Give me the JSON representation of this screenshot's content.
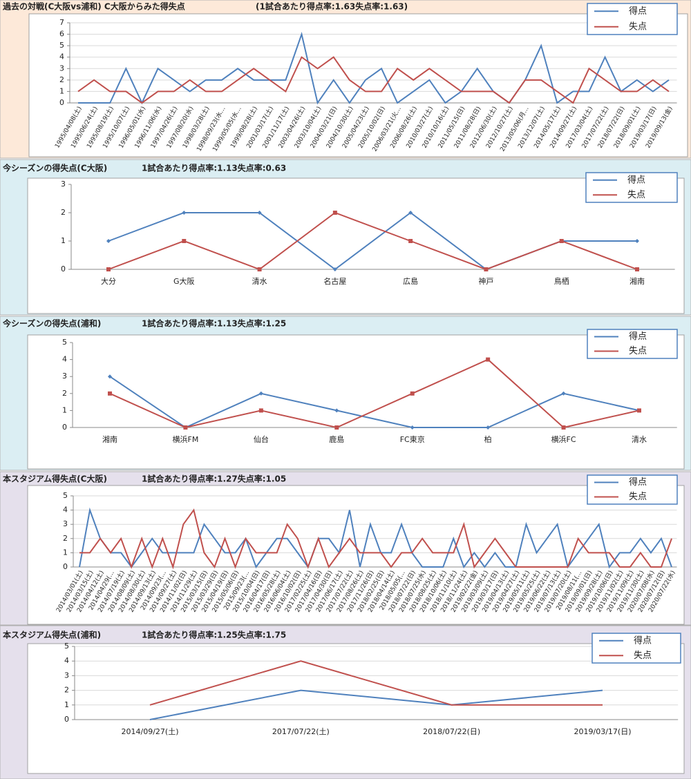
{
  "chart_data": [
    {
      "type": "line",
      "title": "過去の対戦(C大阪vs浦和)  C大阪からみた得失点",
      "subtitle": "(1試合あたり得点率:1.63失点率:1.63)",
      "categories": [
        "1995/04/08(土)",
        "1995/06/24(土)",
        "1995/08/19(土)",
        "1995/10/07(土)",
        "1996/05/01(水)",
        "1996/11/06(水)",
        "1997/04/26(土)",
        "1997/08/20(水)",
        "1998/03/28(土)",
        "1998/09/23(水…",
        "1999/05/05(水…",
        "1999/08/28(土)",
        "2001/03/17(土)",
        "2001/11/17(土)",
        "2003/04/26(土)",
        "2003/10/04(土)",
        "2004/03/21(日)",
        "2004/10/30(土)",
        "2005/04/23(土)",
        "2005/10/02(日)",
        "2006/03/21(火…",
        "2006/08/26(土)",
        "2010/03/27(土)",
        "2010/10/16(土)",
        "2011/05/15(日)",
        "2011/08/28(日)",
        "2012/06/30(土)",
        "2012/10/27(土)",
        "2013/05/06(月…",
        "2013/12/07(土)",
        "2014/05/17(土)",
        "2014/09/27(土)",
        "2017/03/04(土)",
        "2017/07/22(土)",
        "2018/07/22(日)",
        "2018/09/01(土)",
        "2019/03/17(日)",
        "2019/09/13(金)"
      ],
      "series": [
        {
          "name": "得点",
          "color": "#4f81bd",
          "values": [
            0,
            0,
            0,
            3,
            0,
            3,
            2,
            1,
            2,
            2,
            3,
            2,
            2,
            2,
            6,
            0,
            2,
            0,
            2,
            3,
            0,
            1,
            2,
            0,
            1,
            3,
            1,
            0,
            2,
            5,
            0,
            1,
            1,
            4,
            1,
            2,
            1,
            2
          ]
        },
        {
          "name": "失点",
          "color": "#c0504d",
          "values": [
            1,
            2,
            1,
            1,
            0,
            1,
            1,
            2,
            1,
            1,
            2,
            3,
            2,
            1,
            4,
            3,
            4,
            2,
            1,
            1,
            3,
            2,
            3,
            2,
            1,
            1,
            1,
            0,
            2,
            2,
            1,
            0,
            3,
            2,
            1,
            1,
            2,
            1
          ]
        }
      ],
      "ylim": [
        0,
        7
      ],
      "yticks": [
        0,
        1,
        2,
        3,
        4,
        5,
        6,
        7
      ],
      "grid": true,
      "markers": false,
      "legend": "top-right"
    },
    {
      "type": "line",
      "title": "今シーズンの得失点(C大阪)",
      "subtitle": "1試合あたり得点率:1.13失点率:0.63",
      "categories": [
        "大分",
        "G大阪",
        "清水",
        "名古屋",
        "広島",
        "神戸",
        "鳥栖",
        "湘南"
      ],
      "series": [
        {
          "name": "得点",
          "color": "#4f81bd",
          "values": [
            1,
            2,
            2,
            0,
            2,
            0,
            1,
            1
          ]
        },
        {
          "name": "失点",
          "color": "#c0504d",
          "values": [
            0,
            1,
            0,
            2,
            1,
            0,
            1,
            0
          ]
        }
      ],
      "ylim": [
        0,
        3
      ],
      "yticks": [
        0,
        1,
        2,
        3
      ],
      "grid": false,
      "markers": true,
      "legend": "top-right"
    },
    {
      "type": "line",
      "title": "今シーズンの得失点(浦和)",
      "subtitle": "1試合あたり得点率:1.13失点率:1.25",
      "categories": [
        "湘南",
        "横浜FM",
        "仙台",
        "鹿島",
        "FC東京",
        "柏",
        "横浜FC",
        "清水"
      ],
      "series": [
        {
          "name": "得点",
          "color": "#4f81bd",
          "values": [
            3,
            0,
            2,
            1,
            0,
            0,
            2,
            1
          ]
        },
        {
          "name": "失点",
          "color": "#c0504d",
          "values": [
            2,
            0,
            1,
            0,
            2,
            4,
            0,
            1
          ]
        }
      ],
      "ylim": [
        0,
        5
      ],
      "yticks": [
        0,
        1,
        2,
        3,
        4,
        5
      ],
      "grid": false,
      "markers": true,
      "legend": "top-right"
    },
    {
      "type": "line",
      "title": "本スタジアム得失点(C大阪)",
      "subtitle": "1試合あたり得点率:1.27失点率:1.05",
      "categories": [
        "2014/03/01(土)",
        "2014/03/15(土)",
        "2014/04/12(土)",
        "2014/04/29(…",
        "2014/07/19(土)",
        "2014/08/09(土)",
        "2014/08/30(土)",
        "2014/09/13(土)",
        "2014/09/23(…",
        "2014/09/27(土)",
        "2014/11/02(日)",
        "2014/11/29(土)",
        "2015/03/15(日)",
        "2015/03/29(日)",
        "2015/04/19(日)",
        "2015/05/06(日)",
        "2015/09/23(…",
        "2015/10/04(日)",
        "2016/04/17(日)",
        "2016/05/28(土)",
        "2016/06/04(土)",
        "2016/10/02(日)",
        "2017/02/25(土)",
        "2017/04/16(日)",
        "2017/04/30(日)",
        "2017/06/17(土)",
        "2017/07/22(土)",
        "2017/08/26(土)",
        "2017/11/26(日)",
        "2018/02/25(日)",
        "2018/04/14(土)",
        "2018/05/05(…",
        "2018/07/22(日)",
        "2018/07/25(水)",
        "2018/08/25(土)",
        "2018/10/06(土)",
        "2018/11/10(土)",
        "2018/11/24(土)",
        "2019/02/22(金)",
        "2019/03/09(土)",
        "2019/03/17(日)",
        "2019/04/13(土)",
        "2019/04/27(土)",
        "2019/05/11(土)",
        "2019/05/25(土)",
        "2019/06/22(土)",
        "2019/07/13(土)",
        "2019/07/20(土)",
        "2019/08/11(…",
        "2019/09/01(日)",
        "2019/09/28(土)",
        "2019/10/06(日)",
        "2019/11/02(土)",
        "2019/11/09(土)",
        "2019/11/30(土)",
        "2020/07/08(水)",
        "2020/07/12(日)",
        "2020/07/22(水)"
      ],
      "series": [
        {
          "name": "得点",
          "color": "#4f81bd",
          "values": [
            0,
            4,
            2,
            1,
            1,
            0,
            1,
            2,
            1,
            1,
            1,
            1,
            3,
            2,
            1,
            1,
            2,
            0,
            1,
            2,
            2,
            1,
            0,
            2,
            2,
            1,
            4,
            0,
            3,
            1,
            1,
            3,
            1,
            0,
            0,
            0,
            2,
            0,
            1,
            0,
            1,
            0,
            0,
            3,
            1,
            2,
            3,
            0,
            1,
            2,
            3,
            0,
            1,
            1,
            2,
            1,
            2,
            0
          ]
        },
        {
          "name": "失点",
          "color": "#c0504d",
          "values": [
            1,
            1,
            2,
            1,
            2,
            0,
            2,
            0,
            2,
            0,
            3,
            4,
            1,
            0,
            2,
            0,
            2,
            1,
            1,
            1,
            3,
            2,
            0,
            2,
            0,
            1,
            2,
            1,
            1,
            1,
            0,
            1,
            1,
            2,
            1,
            1,
            1,
            3,
            0,
            1,
            2,
            1,
            0,
            0,
            0,
            0,
            0,
            0,
            2,
            1,
            1,
            1,
            0,
            0,
            1,
            0,
            0,
            2
          ]
        }
      ],
      "ylim": [
        0,
        5
      ],
      "yticks": [
        0,
        1,
        2,
        3,
        4,
        5
      ],
      "grid": true,
      "markers": false,
      "legend": "top-right"
    },
    {
      "type": "line",
      "title": "本スタジアム得失点(浦和)",
      "subtitle": "1試合あたり得点率:1.25失点率:1.75",
      "categories": [
        "2014/09/27(土)",
        "2017/07/22(土)",
        "2018/07/22(日)",
        "2019/03/17(日)"
      ],
      "series": [
        {
          "name": "得点",
          "color": "#4f81bd",
          "values": [
            0,
            2,
            1,
            2
          ]
        },
        {
          "name": "失点",
          "color": "#c0504d",
          "values": [
            1,
            4,
            1,
            1
          ]
        }
      ],
      "ylim": [
        0,
        5
      ],
      "yticks": [
        0,
        1,
        2,
        3,
        4,
        5
      ],
      "grid": true,
      "markers": false,
      "legend": "top-right"
    }
  ]
}
